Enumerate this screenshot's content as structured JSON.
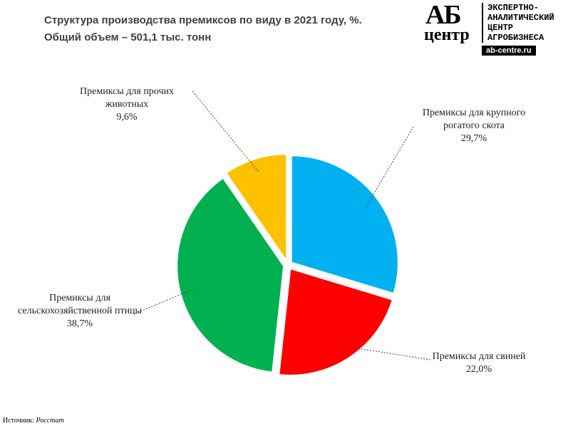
{
  "chart_data": {
    "type": "pie",
    "title": "Структура производства премиксов по виду в 2021 году, %.",
    "subtitle": "Общий объем – 501,1 тыс. тонн",
    "categories": [
      "Премиксы для крупного рогатого скота",
      "Премиксы для свиней",
      "Премиксы для сельскохозяйственной птицы",
      "Премиксы для прочих животных"
    ],
    "values": [
      29.7,
      22.0,
      38.7,
      9.6
    ],
    "value_labels": [
      "29,7%",
      "22,0%",
      "38,7%",
      "9,6%"
    ],
    "colors": [
      "#00b0f0",
      "#ff0000",
      "#00b050",
      "#ffc000"
    ]
  },
  "logo": {
    "mark_top": "АБ",
    "mark_bottom": "центр",
    "lines": [
      "ЭКСПЕРТНО-",
      "АНАЛИТИЧЕСКИЙ",
      "ЦЕНТР",
      "АГРОБИЗНЕСА"
    ],
    "url": "ab-centre.ru"
  },
  "source": {
    "label": "Источник:",
    "value": "Росстат"
  }
}
